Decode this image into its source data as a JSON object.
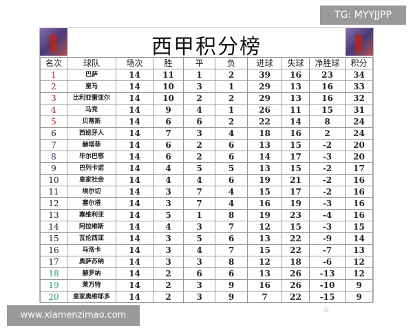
{
  "title": "西甲积分榜",
  "headers": [
    "名次",
    "球队",
    "场次",
    "胜",
    "平",
    "负",
    "进球",
    "失球",
    "净胜球",
    "积分"
  ],
  "rank_colors": {
    "top": "#a02030",
    "europa": "#c02020",
    "conf": "#303070",
    "relegation": "#2a9a6a",
    "default": "#222222"
  },
  "rows": [
    [
      "1",
      "巴萨",
      "14",
      "11",
      "1",
      "2",
      "39",
      "16",
      "23",
      "34"
    ],
    [
      "2",
      "皇马",
      "14",
      "10",
      "3",
      "1",
      "29",
      "13",
      "16",
      "33"
    ],
    [
      "3",
      "比利亚雷亚尔",
      "14",
      "10",
      "2",
      "2",
      "29",
      "13",
      "16",
      "32"
    ],
    [
      "4",
      "马竞",
      "14",
      "9",
      "4",
      "1",
      "26",
      "11",
      "15",
      "31"
    ],
    [
      "5",
      "贝蒂斯",
      "14",
      "6",
      "6",
      "2",
      "22",
      "14",
      "8",
      "24"
    ],
    [
      "6",
      "西班牙人",
      "14",
      "7",
      "3",
      "4",
      "18",
      "16",
      "2",
      "24"
    ],
    [
      "7",
      "赫塔菲",
      "14",
      "6",
      "2",
      "6",
      "13",
      "15",
      "-2",
      "20"
    ],
    [
      "8",
      "毕尔巴鄂",
      "14",
      "6",
      "2",
      "6",
      "14",
      "17",
      "-3",
      "20"
    ],
    [
      "9",
      "巴列卡诺",
      "14",
      "4",
      "5",
      "5",
      "13",
      "15",
      "-2",
      "17"
    ],
    [
      "10",
      "皇家社会",
      "14",
      "4",
      "4",
      "6",
      "19",
      "21",
      "-2",
      "16"
    ],
    [
      "11",
      "埃尔切",
      "14",
      "3",
      "7",
      "4",
      "15",
      "17",
      "-2",
      "16"
    ],
    [
      "12",
      "塞尔塔",
      "14",
      "3",
      "7",
      "4",
      "16",
      "19",
      "-3",
      "16"
    ],
    [
      "13",
      "塞维利亚",
      "14",
      "5",
      "1",
      "8",
      "19",
      "23",
      "-4",
      "16"
    ],
    [
      "14",
      "阿拉维斯",
      "14",
      "4",
      "3",
      "7",
      "12",
      "15",
      "-3",
      "15"
    ],
    [
      "15",
      "瓦伦西亚",
      "14",
      "3",
      "5",
      "6",
      "13",
      "22",
      "-9",
      "14"
    ],
    [
      "16",
      "马洛卡",
      "14",
      "3",
      "4",
      "7",
      "15",
      "22",
      "-7",
      "13"
    ],
    [
      "17",
      "奥萨苏纳",
      "14",
      "3",
      "3",
      "8",
      "12",
      "18",
      "-6",
      "12"
    ],
    [
      "18",
      "赫罗纳",
      "14",
      "2",
      "6",
      "6",
      "13",
      "26",
      "-13",
      "12"
    ],
    [
      "19",
      "莱万特",
      "14",
      "2",
      "3",
      "9",
      "16",
      "26",
      "-10",
      "9"
    ],
    [
      "20",
      "皇家奥维耶多",
      "14",
      "2",
      "3",
      "9",
      "7",
      "22",
      "-15",
      "9"
    ]
  ],
  "overlays": {
    "tg": "TG: MYYJJPP",
    "site": "www.xiamenzimao.com"
  }
}
